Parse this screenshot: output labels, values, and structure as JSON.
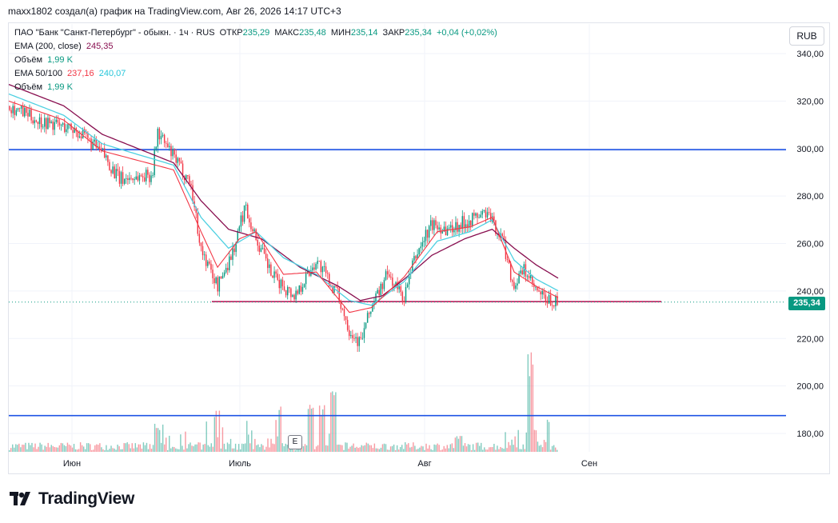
{
  "caption": "maxx1802 создал(а) график на TradingView.com, Авг 26, 2026 14:17 UTC+3",
  "legend": {
    "symbol": "ПАО \"Банк \"Санкт-Петербург\" - обыкн. · 1ч · RUS",
    "open_label": "ОТКР",
    "open": "235,29",
    "high_label": "МАКС",
    "high": "235,48",
    "low_label": "МИН",
    "low": "235,14",
    "close_label": "ЗАКР",
    "close": "235,34",
    "change": "+0,04 (+0,02%)",
    "ema200_label": "EMA (200, close)",
    "ema200_value": "245,35",
    "volume_label": "Объём",
    "volume_value": "1,99 K",
    "ema_pair_label": "EMA 50/100",
    "ema50_value": "237,16",
    "ema100_value": "240,07",
    "volume2_label": "Объём",
    "volume2_value": "1,99 K"
  },
  "currency": "RUB",
  "last_price": "235,34",
  "earnings_marker": "E",
  "brand": "TradingView",
  "colors": {
    "up": "#089981",
    "down": "#f23645",
    "ema200": "#880e4f",
    "ema50": "#f23645",
    "ema100": "#4dd0e1",
    "hline_blue": "#1e53e5",
    "hline_magenta": "#c2185b"
  },
  "chart_data": {
    "type": "candlestick",
    "x_ticks": [
      "Июн",
      "Июль",
      "Авг",
      "Сен"
    ],
    "y_ticks": [
      "340,00",
      "320,00",
      "300,00",
      "280,00",
      "260,00",
      "240,00",
      "220,00",
      "200,00",
      "180,00"
    ],
    "ylim": [
      172,
      346
    ],
    "horizontal_levels": [
      {
        "value": 299.5,
        "color": "blue"
      },
      {
        "value": 235.5,
        "color": "magenta"
      },
      {
        "value": 187.5,
        "color": "blue"
      }
    ],
    "price_path": [
      [
        0,
        318
      ],
      [
        0.05,
        312
      ],
      [
        0.12,
        308
      ],
      [
        0.17,
        298
      ],
      [
        0.2,
        287
      ],
      [
        0.26,
        289
      ],
      [
        0.27,
        307
      ],
      [
        0.3,
        296
      ],
      [
        0.33,
        286
      ],
      [
        0.35,
        257
      ],
      [
        0.38,
        242
      ],
      [
        0.41,
        258
      ],
      [
        0.43,
        276
      ],
      [
        0.45,
        262
      ],
      [
        0.48,
        246
      ],
      [
        0.52,
        238
      ],
      [
        0.56,
        253
      ],
      [
        0.6,
        238
      ],
      [
        0.62,
        224
      ],
      [
        0.64,
        218
      ],
      [
        0.66,
        233
      ],
      [
        0.69,
        247
      ],
      [
        0.72,
        237
      ],
      [
        0.74,
        254
      ],
      [
        0.77,
        268
      ],
      [
        0.8,
        266
      ],
      [
        0.84,
        270
      ],
      [
        0.87,
        273
      ],
      [
        0.9,
        262
      ],
      [
        0.92,
        242
      ],
      [
        0.94,
        249
      ],
      [
        0.96,
        240
      ],
      [
        0.98,
        236
      ],
      [
        1.0,
        235.3
      ]
    ],
    "ema200": [
      [
        0,
        327
      ],
      [
        0.1,
        318
      ],
      [
        0.17,
        306
      ],
      [
        0.3,
        294
      ],
      [
        0.35,
        278
      ],
      [
        0.4,
        266
      ],
      [
        0.46,
        262
      ],
      [
        0.53,
        250
      ],
      [
        0.6,
        242
      ],
      [
        0.64,
        236
      ],
      [
        0.68,
        238
      ],
      [
        0.72,
        245
      ],
      [
        0.77,
        255
      ],
      [
        0.83,
        262
      ],
      [
        0.88,
        266
      ],
      [
        0.92,
        258
      ],
      [
        0.96,
        251
      ],
      [
        1.0,
        245.4
      ]
    ],
    "ema100": [
      [
        0,
        323
      ],
      [
        0.1,
        314
      ],
      [
        0.17,
        302
      ],
      [
        0.3,
        293
      ],
      [
        0.35,
        271
      ],
      [
        0.4,
        258
      ],
      [
        0.45,
        265
      ],
      [
        0.5,
        254
      ],
      [
        0.56,
        247
      ],
      [
        0.62,
        236
      ],
      [
        0.66,
        234
      ],
      [
        0.72,
        244
      ],
      [
        0.78,
        261
      ],
      [
        0.84,
        265
      ],
      [
        0.88,
        270
      ],
      [
        0.92,
        253
      ],
      [
        0.96,
        245
      ],
      [
        1.0,
        240.1
      ]
    ],
    "ema50": [
      [
        0,
        320
      ],
      [
        0.1,
        312
      ],
      [
        0.17,
        299
      ],
      [
        0.3,
        291
      ],
      [
        0.35,
        265
      ],
      [
        0.38,
        250
      ],
      [
        0.42,
        262
      ],
      [
        0.45,
        265
      ],
      [
        0.5,
        247
      ],
      [
        0.56,
        248
      ],
      [
        0.62,
        231
      ],
      [
        0.66,
        233
      ],
      [
        0.72,
        246
      ],
      [
        0.78,
        265
      ],
      [
        0.84,
        267
      ],
      [
        0.88,
        271
      ],
      [
        0.92,
        248
      ],
      [
        0.96,
        242
      ],
      [
        1.0,
        237.2
      ]
    ],
    "volume_spikes": [
      [
        0.27,
        0.28
      ],
      [
        0.38,
        0.42
      ],
      [
        0.49,
        0.5
      ],
      [
        0.55,
        0.5
      ],
      [
        0.57,
        0.45
      ],
      [
        0.59,
        0.6
      ],
      [
        0.82,
        0.15
      ],
      [
        0.95,
        1.0
      ],
      [
        0.98,
        0.3
      ]
    ]
  }
}
